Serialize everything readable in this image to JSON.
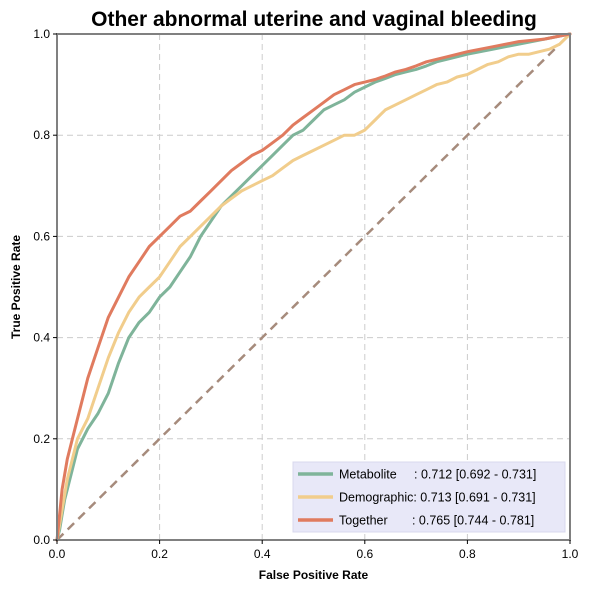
{
  "chart_data": {
    "type": "line",
    "title": "Other abnormal uterine and vaginal bleeding",
    "xlabel": "False Positive Rate",
    "ylabel": "True Positive Rate",
    "xlim": [
      0,
      1
    ],
    "ylim": [
      0,
      1
    ],
    "xticks": [
      "0.0",
      "0.2",
      "0.4",
      "0.6",
      "0.8",
      "1.0"
    ],
    "yticks": [
      "0.0",
      "0.2",
      "0.4",
      "0.6",
      "0.8",
      "1.0"
    ],
    "grid": true,
    "legend_position": "bottom-right",
    "diagonal": {
      "x": [
        0,
        1
      ],
      "y": [
        0,
        1
      ],
      "color": "#a68b7c",
      "style": "dashed"
    },
    "series": [
      {
        "name": "Metabolite",
        "label": "Metabolite     : 0.712 [0.692 - 0.731]",
        "color": "#7fb49a",
        "x": [
          0,
          0.005,
          0.01,
          0.015,
          0.02,
          0.03,
          0.04,
          0.05,
          0.06,
          0.08,
          0.1,
          0.12,
          0.14,
          0.16,
          0.18,
          0.2,
          0.22,
          0.24,
          0.26,
          0.28,
          0.3,
          0.32,
          0.34,
          0.36,
          0.38,
          0.4,
          0.42,
          0.44,
          0.46,
          0.48,
          0.5,
          0.52,
          0.54,
          0.56,
          0.58,
          0.6,
          0.62,
          0.64,
          0.66,
          0.68,
          0.7,
          0.72,
          0.74,
          0.76,
          0.8,
          0.85,
          0.9,
          0.95,
          1.0
        ],
        "y": [
          0,
          0.02,
          0.05,
          0.08,
          0.1,
          0.14,
          0.18,
          0.2,
          0.22,
          0.25,
          0.29,
          0.35,
          0.4,
          0.43,
          0.45,
          0.48,
          0.5,
          0.53,
          0.56,
          0.6,
          0.63,
          0.66,
          0.68,
          0.7,
          0.72,
          0.74,
          0.76,
          0.78,
          0.8,
          0.81,
          0.83,
          0.85,
          0.86,
          0.87,
          0.885,
          0.895,
          0.905,
          0.912,
          0.92,
          0.925,
          0.93,
          0.937,
          0.945,
          0.95,
          0.96,
          0.97,
          0.98,
          0.99,
          1.0
        ]
      },
      {
        "name": "Demographic",
        "label": "Demographic: 0.713 [0.691 - 0.731]",
        "color": "#f1cd8c",
        "x": [
          0,
          0.005,
          0.01,
          0.02,
          0.03,
          0.04,
          0.06,
          0.08,
          0.1,
          0.12,
          0.14,
          0.16,
          0.18,
          0.2,
          0.22,
          0.24,
          0.26,
          0.28,
          0.3,
          0.32,
          0.34,
          0.36,
          0.38,
          0.4,
          0.42,
          0.44,
          0.46,
          0.48,
          0.5,
          0.52,
          0.54,
          0.56,
          0.58,
          0.6,
          0.62,
          0.64,
          0.66,
          0.68,
          0.7,
          0.72,
          0.74,
          0.76,
          0.78,
          0.8,
          0.82,
          0.84,
          0.86,
          0.88,
          0.9,
          0.92,
          0.94,
          0.96,
          0.98,
          1.0
        ],
        "y": [
          0,
          0.03,
          0.06,
          0.12,
          0.16,
          0.2,
          0.24,
          0.3,
          0.36,
          0.41,
          0.45,
          0.48,
          0.5,
          0.52,
          0.55,
          0.58,
          0.6,
          0.62,
          0.64,
          0.66,
          0.675,
          0.69,
          0.7,
          0.71,
          0.72,
          0.735,
          0.75,
          0.76,
          0.77,
          0.78,
          0.79,
          0.8,
          0.8,
          0.81,
          0.83,
          0.85,
          0.86,
          0.87,
          0.88,
          0.89,
          0.9,
          0.905,
          0.915,
          0.92,
          0.93,
          0.94,
          0.945,
          0.955,
          0.96,
          0.96,
          0.965,
          0.97,
          0.98,
          1.0
        ]
      },
      {
        "name": "Together",
        "label": "Together       : 0.765 [0.744 - 0.781]",
        "color": "#e07b5f",
        "x": [
          0,
          0.005,
          0.01,
          0.015,
          0.02,
          0.03,
          0.04,
          0.05,
          0.06,
          0.08,
          0.1,
          0.12,
          0.14,
          0.16,
          0.18,
          0.2,
          0.22,
          0.24,
          0.26,
          0.28,
          0.3,
          0.32,
          0.34,
          0.36,
          0.38,
          0.4,
          0.42,
          0.44,
          0.46,
          0.48,
          0.5,
          0.52,
          0.54,
          0.56,
          0.58,
          0.6,
          0.62,
          0.64,
          0.66,
          0.68,
          0.7,
          0.72,
          0.74,
          0.76,
          0.8,
          0.85,
          0.9,
          0.95,
          1.0
        ],
        "y": [
          0,
          0.05,
          0.1,
          0.13,
          0.16,
          0.2,
          0.24,
          0.28,
          0.32,
          0.38,
          0.44,
          0.48,
          0.52,
          0.55,
          0.58,
          0.6,
          0.62,
          0.64,
          0.65,
          0.67,
          0.69,
          0.71,
          0.73,
          0.745,
          0.76,
          0.77,
          0.785,
          0.8,
          0.82,
          0.835,
          0.85,
          0.865,
          0.88,
          0.89,
          0.9,
          0.905,
          0.91,
          0.917,
          0.925,
          0.93,
          0.937,
          0.945,
          0.95,
          0.955,
          0.965,
          0.975,
          0.985,
          0.99,
          1.0
        ]
      }
    ]
  }
}
